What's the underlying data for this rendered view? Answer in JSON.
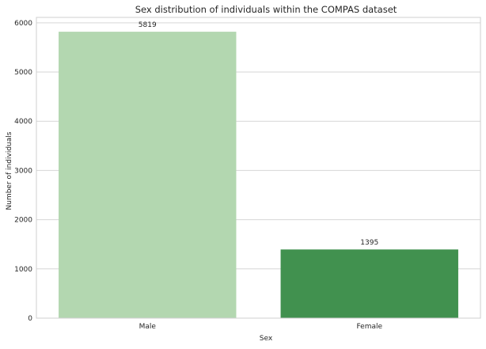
{
  "chart_data": {
    "type": "bar",
    "title": "Sex distribution of individuals within the COMPAS dataset",
    "xlabel": "Sex",
    "ylabel": "Number of individuals",
    "categories": [
      "Male",
      "Female"
    ],
    "values": [
      5819,
      1395
    ],
    "data_labels": [
      "5819",
      "1395"
    ],
    "bar_colors": [
      "#b3d7b0",
      "#41914f"
    ],
    "ylim": [
      0,
      6110
    ],
    "yticks": [
      0,
      1000,
      2000,
      3000,
      4000,
      5000,
      6000
    ],
    "ytick_labels": [
      "0",
      "1000",
      "2000",
      "3000",
      "4000",
      "5000",
      "6000"
    ],
    "grid": "horizontal",
    "legend": "none"
  }
}
